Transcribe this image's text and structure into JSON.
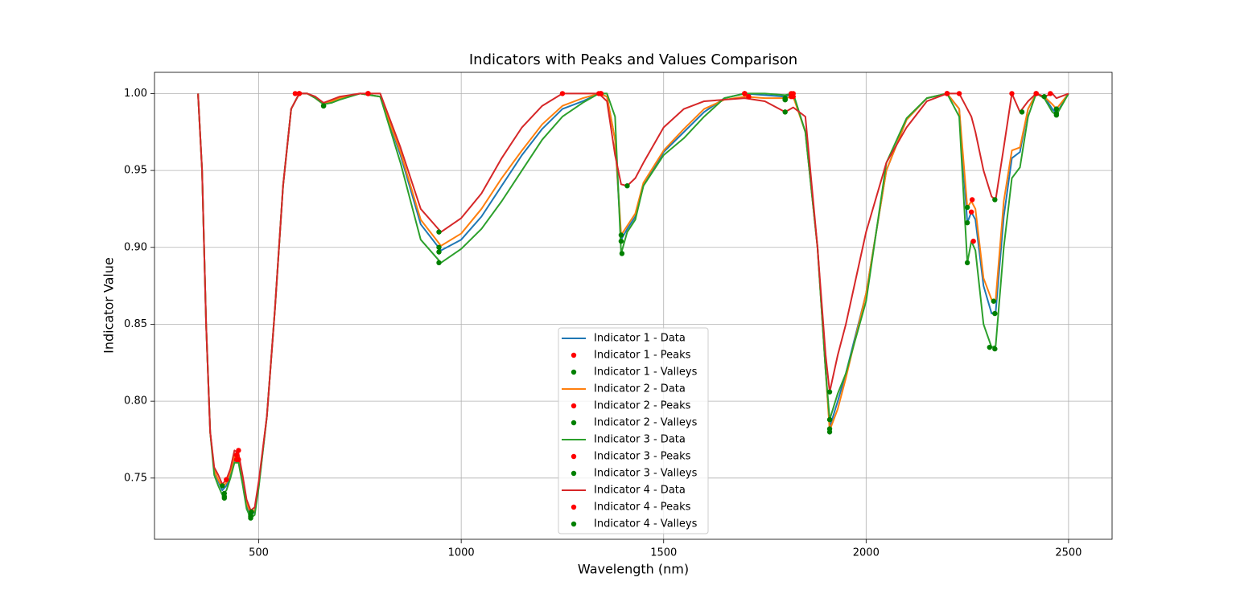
{
  "chart_data": {
    "type": "line",
    "title": "Indicators with Peaks and Values Comparison",
    "xlabel": "Wavelength (nm)",
    "ylabel": "Indicator Value",
    "xlim": [
      242.5,
      2607.5
    ],
    "ylim": [
      0.7102,
      1.0138
    ],
    "xticks": [
      500,
      1000,
      1500,
      2000,
      2500
    ],
    "yticks": [
      0.75,
      {
        "value": 0.8,
        "label": "0.80"
      },
      0.85,
      {
        "value": 0.9,
        "label": "0.90"
      },
      0.95,
      {
        "value": 1.0,
        "label": "1.00"
      }
    ],
    "grid": true,
    "legend": "lower center",
    "x": [
      350,
      360,
      370,
      380,
      390,
      400,
      410,
      420,
      430,
      440,
      450,
      460,
      470,
      480,
      490,
      500,
      520,
      540,
      560,
      580,
      600,
      620,
      640,
      660,
      680,
      700,
      750,
      800,
      850,
      900,
      950,
      1000,
      1050,
      1100,
      1150,
      1200,
      1250,
      1300,
      1340,
      1360,
      1380,
      1395,
      1410,
      1430,
      1450,
      1500,
      1550,
      1600,
      1650,
      1700,
      1750,
      1800,
      1820,
      1850,
      1880,
      1900,
      1910,
      1930,
      1950,
      2000,
      2050,
      2100,
      2150,
      2200,
      2230,
      2250,
      2260,
      2270,
      2290,
      2310,
      2320,
      2340,
      2360,
      2380,
      2400,
      2420,
      2440,
      2460,
      2470,
      2500
    ],
    "series": [
      {
        "name": "Indicator 1 - Data",
        "kind": "line",
        "color": "#1f77b4",
        "values": [
          1.0,
          0.95,
          0.85,
          0.78,
          0.755,
          0.748,
          0.742,
          0.745,
          0.752,
          0.762,
          0.762,
          0.748,
          0.732,
          0.726,
          0.728,
          0.745,
          0.79,
          0.86,
          0.94,
          0.99,
          1.0,
          1.0,
          0.997,
          0.993,
          0.995,
          0.997,
          1.0,
          0.998,
          0.96,
          0.915,
          0.898,
          0.905,
          0.92,
          0.94,
          0.96,
          0.977,
          0.99,
          0.995,
          1.0,
          0.998,
          0.97,
          0.905,
          0.912,
          0.92,
          0.94,
          0.962,
          0.975,
          0.988,
          0.997,
          1.0,
          0.999,
          0.998,
          1.0,
          0.975,
          0.9,
          0.82,
          0.783,
          0.8,
          0.818,
          0.87,
          0.95,
          0.983,
          0.997,
          1.0,
          0.99,
          0.916,
          0.923,
          0.918,
          0.875,
          0.857,
          0.858,
          0.92,
          0.958,
          0.962,
          0.99,
          1.0,
          0.998,
          0.99,
          0.987,
          1.0
        ]
      },
      {
        "name": "Indicator 1 - Peaks",
        "kind": "scatter",
        "color": "#ff0000",
        "x": [
          450,
          600,
          770,
          1345,
          1700,
          1820,
          2200,
          2260,
          2420
        ],
        "values": [
          0.762,
          1.0,
          1.0,
          1.0,
          1.0,
          1.0,
          1.0,
          0.923,
          1.0
        ]
      },
      {
        "name": "Indicator 1 - Valleys",
        "kind": "scatter",
        "color": "#008000",
        "x": [
          415,
          480,
          660,
          945,
          1395,
          1800,
          1910,
          2250,
          2318,
          2470
        ],
        "values": [
          0.738,
          0.725,
          0.992,
          0.897,
          0.904,
          0.997,
          0.782,
          0.916,
          0.857,
          0.987
        ]
      },
      {
        "name": "Indicator 2 - Data",
        "kind": "line",
        "color": "#ff7f0e",
        "values": [
          1.0,
          0.95,
          0.85,
          0.78,
          0.755,
          0.749,
          0.744,
          0.747,
          0.754,
          0.764,
          0.764,
          0.75,
          0.734,
          0.727,
          0.729,
          0.746,
          0.79,
          0.86,
          0.94,
          0.99,
          1.0,
          1.0,
          0.997,
          0.993,
          0.995,
          0.997,
          1.0,
          0.998,
          0.962,
          0.918,
          0.901,
          0.909,
          0.925,
          0.945,
          0.963,
          0.98,
          0.992,
          0.997,
          1.0,
          0.998,
          0.97,
          0.908,
          0.914,
          0.922,
          0.942,
          0.963,
          0.977,
          0.99,
          0.996,
          0.998,
          0.997,
          0.997,
          0.998,
          0.975,
          0.9,
          0.82,
          0.781,
          0.795,
          0.815,
          0.87,
          0.95,
          0.983,
          0.997,
          1.0,
          0.99,
          0.926,
          0.93,
          0.925,
          0.88,
          0.866,
          0.866,
          0.93,
          0.963,
          0.965,
          0.99,
          1.0,
          0.998,
          0.993,
          0.99,
          1.0
        ]
      },
      {
        "name": "Indicator 2 - Peaks",
        "kind": "scatter",
        "color": "#ff0000",
        "x": [
          445,
          600,
          770,
          1345,
          1710,
          1820,
          2200,
          2262,
          2420
        ],
        "values": [
          0.765,
          1.0,
          1.0,
          1.0,
          0.998,
          0.998,
          1.0,
          0.931,
          1.0
        ]
      },
      {
        "name": "Indicator 2 - Valleys",
        "kind": "scatter",
        "color": "#008000",
        "x": [
          415,
          480,
          660,
          945,
          1395,
          1800,
          1910,
          2250,
          2315,
          2470
        ],
        "values": [
          0.74,
          0.726,
          0.992,
          0.9,
          0.908,
          0.996,
          0.78,
          0.926,
          0.865,
          0.99
        ]
      },
      {
        "name": "Indicator 3 - Data",
        "kind": "line",
        "color": "#2ca02c",
        "values": [
          1.0,
          0.95,
          0.85,
          0.78,
          0.752,
          0.745,
          0.739,
          0.742,
          0.75,
          0.76,
          0.76,
          0.746,
          0.73,
          0.724,
          0.726,
          0.744,
          0.79,
          0.86,
          0.94,
          0.99,
          1.0,
          1.0,
          0.997,
          0.993,
          0.994,
          0.996,
          1.0,
          0.998,
          0.955,
          0.905,
          0.89,
          0.899,
          0.912,
          0.93,
          0.95,
          0.97,
          0.985,
          0.994,
          1.0,
          1.0,
          0.985,
          0.896,
          0.91,
          0.918,
          0.94,
          0.96,
          0.971,
          0.985,
          0.997,
          1.0,
          1.0,
          0.999,
          1.0,
          0.975,
          0.9,
          0.82,
          0.788,
          0.805,
          0.818,
          0.865,
          0.955,
          0.984,
          0.997,
          1.0,
          0.985,
          0.89,
          0.904,
          0.898,
          0.85,
          0.835,
          0.836,
          0.9,
          0.945,
          0.952,
          0.985,
          1.0,
          0.997,
          0.988,
          0.986,
          1.0
        ]
      },
      {
        "name": "Indicator 3 - Peaks",
        "kind": "scatter",
        "color": "#ff0000",
        "x": [
          445,
          600,
          770,
          1340,
          1700,
          1815,
          2200,
          2265,
          2420
        ],
        "values": [
          0.762,
          1.0,
          1.0,
          1.0,
          1.0,
          1.0,
          1.0,
          0.904,
          1.0
        ]
      },
      {
        "name": "Indicator 3 - Valleys",
        "kind": "scatter",
        "color": "#008000",
        "x": [
          415,
          480,
          660,
          945,
          1397,
          1800,
          1910,
          2250,
          2305,
          2318,
          2470
        ],
        "values": [
          0.737,
          0.724,
          0.992,
          0.89,
          0.896,
          0.996,
          0.788,
          0.89,
          0.835,
          0.834,
          0.986
        ]
      },
      {
        "name": "Indicator 4 - Data",
        "kind": "line",
        "color": "#d62728",
        "values": [
          1.0,
          0.95,
          0.85,
          0.78,
          0.757,
          0.752,
          0.746,
          0.749,
          0.756,
          0.768,
          0.766,
          0.752,
          0.736,
          0.729,
          0.731,
          0.748,
          0.79,
          0.86,
          0.94,
          0.99,
          1.0,
          1.0,
          0.998,
          0.994,
          0.996,
          0.998,
          1.0,
          1.0,
          0.965,
          0.925,
          0.91,
          0.919,
          0.935,
          0.958,
          0.978,
          0.992,
          1.0,
          1.0,
          1.0,
          0.995,
          0.96,
          0.941,
          0.94,
          0.945,
          0.955,
          0.978,
          0.99,
          0.995,
          0.996,
          0.997,
          0.995,
          0.988,
          0.991,
          0.985,
          0.9,
          0.83,
          0.806,
          0.83,
          0.85,
          0.91,
          0.955,
          0.978,
          0.995,
          1.0,
          1.0,
          0.99,
          0.985,
          0.975,
          0.95,
          0.933,
          0.931,
          0.965,
          1.0,
          0.988,
          0.995,
          1.0,
          0.998,
          1.0,
          0.997,
          1.0
        ]
      },
      {
        "name": "Indicator 4 - Peaks",
        "kind": "scatter",
        "color": "#ff0000",
        "x": [
          420,
          450,
          590,
          770,
          1250,
          1345,
          1700,
          1710,
          1815,
          2200,
          2230,
          2360,
          2420,
          2455
        ],
        "values": [
          0.749,
          0.768,
          1.0,
          1.0,
          1.0,
          1.0,
          1.0,
          0.998,
          0.998,
          1.0,
          1.0,
          1.0,
          1.0,
          1.0
        ]
      },
      {
        "name": "Indicator 4 - Valleys",
        "kind": "scatter",
        "color": "#008000",
        "x": [
          410,
          482,
          945,
          1410,
          1800,
          1910,
          2318,
          2385,
          2440
        ],
        "values": [
          0.745,
          0.728,
          0.91,
          0.94,
          0.988,
          0.806,
          0.931,
          0.988,
          0.998
        ]
      }
    ]
  }
}
